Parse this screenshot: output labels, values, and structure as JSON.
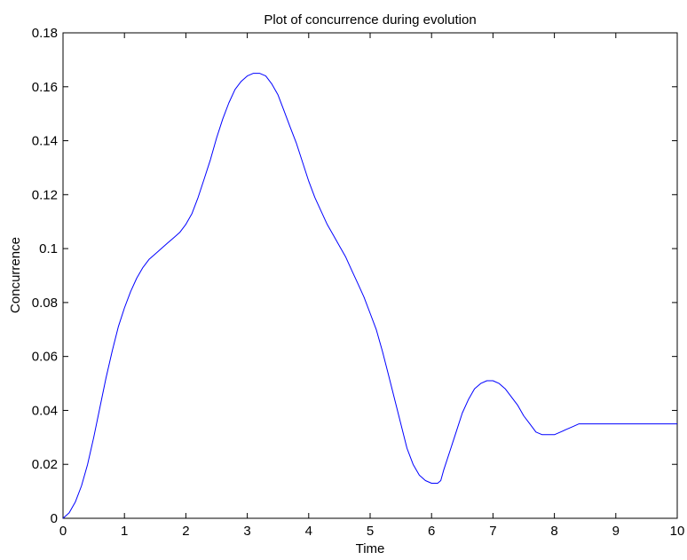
{
  "chart_data": {
    "type": "line",
    "title": "Plot of concurrence during evolution",
    "xlabel": "Time",
    "ylabel": "Concurrence",
    "xlim": [
      0,
      10
    ],
    "ylim": [
      0,
      0.18
    ],
    "xticks": [
      0,
      1,
      2,
      3,
      4,
      5,
      6,
      7,
      8,
      9,
      10
    ],
    "xtick_labels": [
      "0",
      "1",
      "2",
      "3",
      "4",
      "5",
      "6",
      "7",
      "8",
      "9",
      "10"
    ],
    "yticks": [
      0,
      0.02,
      0.04,
      0.06,
      0.08,
      0.1,
      0.12,
      0.14,
      0.16,
      0.18
    ],
    "ytick_labels": [
      "0",
      "0.02",
      "0.04",
      "0.06",
      "0.08",
      "0.1",
      "0.12",
      "0.14",
      "0.16",
      "0.18"
    ],
    "grid": false,
    "legend": false,
    "series": [
      {
        "color": "#0000ff",
        "x": [
          0,
          0.1,
          0.2,
          0.3,
          0.4,
          0.5,
          0.6,
          0.7,
          0.8,
          0.9,
          1.0,
          1.1,
          1.2,
          1.3,
          1.4,
          1.5,
          1.6,
          1.7,
          1.8,
          1.9,
          2.0,
          2.1,
          2.2,
          2.3,
          2.4,
          2.5,
          2.6,
          2.7,
          2.8,
          2.9,
          3.0,
          3.1,
          3.2,
          3.3,
          3.4,
          3.5,
          3.6,
          3.7,
          3.8,
          3.9,
          4.0,
          4.1,
          4.2,
          4.3,
          4.4,
          4.5,
          4.6,
          4.7,
          4.8,
          4.9,
          5.0,
          5.1,
          5.2,
          5.3,
          5.4,
          5.5,
          5.6,
          5.7,
          5.8,
          5.9,
          6.0,
          6.1,
          6.15,
          6.2,
          6.3,
          6.4,
          6.5,
          6.6,
          6.7,
          6.8,
          6.9,
          7.0,
          7.1,
          7.2,
          7.3,
          7.4,
          7.5,
          7.6,
          7.7,
          7.8,
          7.9,
          8.0,
          8.1,
          8.2,
          8.3,
          8.4,
          8.5,
          8.6,
          8.7,
          8.8,
          8.9,
          9.0,
          9.5,
          10.0
        ],
        "y": [
          0,
          0.002,
          0.006,
          0.012,
          0.02,
          0.03,
          0.041,
          0.052,
          0.062,
          0.071,
          0.078,
          0.084,
          0.089,
          0.093,
          0.096,
          0.098,
          0.1,
          0.102,
          0.104,
          0.106,
          0.109,
          0.113,
          0.119,
          0.126,
          0.133,
          0.141,
          0.148,
          0.154,
          0.159,
          0.162,
          0.164,
          0.165,
          0.165,
          0.164,
          0.161,
          0.157,
          0.151,
          0.145,
          0.139,
          0.132,
          0.125,
          0.119,
          0.114,
          0.109,
          0.105,
          0.101,
          0.097,
          0.092,
          0.087,
          0.082,
          0.076,
          0.07,
          0.062,
          0.053,
          0.044,
          0.035,
          0.026,
          0.02,
          0.016,
          0.014,
          0.013,
          0.013,
          0.014,
          0.018,
          0.025,
          0.032,
          0.039,
          0.044,
          0.048,
          0.05,
          0.051,
          0.051,
          0.05,
          0.048,
          0.045,
          0.042,
          0.038,
          0.035,
          0.032,
          0.031,
          0.031,
          0.031,
          0.032,
          0.033,
          0.034,
          0.035,
          0.035,
          0.035,
          0.035,
          0.035,
          0.035,
          0.035,
          0.035,
          0.035
        ]
      }
    ]
  }
}
